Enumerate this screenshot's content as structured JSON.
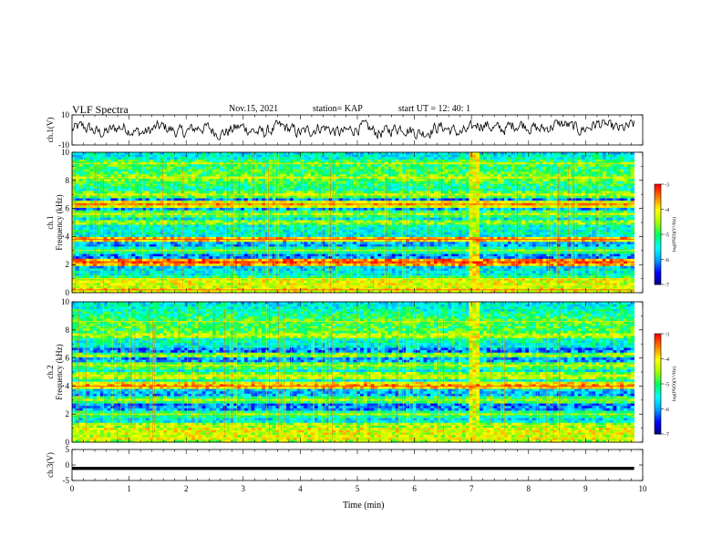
{
  "header": {
    "title": "VLF Spectra",
    "date": "Nov.15, 2021",
    "station": "station= KAP",
    "start_time": "start  UT  =   12: 40: 1"
  },
  "chart_data": [
    {
      "id": "ch1-waveform",
      "type": "line",
      "ylabel": "ch.1(V)",
      "ylim": [
        -10,
        10
      ],
      "yticks": [
        "10",
        "-10"
      ],
      "xlim": [
        0,
        10
      ],
      "description_of_values": "continuous noisy waveform between roughly -6 and +6 V over 0 to 9.85 min"
    },
    {
      "id": "ch1-spectrogram",
      "type": "heatmap",
      "ylabel": "ch.1  Frequency (kHz)",
      "ylim": [
        0,
        10
      ],
      "yticks": [
        "0",
        "2",
        "4",
        "6",
        "8",
        "10"
      ],
      "xlim": [
        0,
        10
      ],
      "colorbar": {
        "label": "log(PSD)(V²/Hz)",
        "range": [
          -7,
          -3
        ],
        "ticks": [
          "-3",
          "-4",
          "-5",
          "-6",
          "-7"
        ]
      },
      "bands": [
        {
          "freq": 0.2,
          "level": -3.9
        },
        {
          "freq": 0.5,
          "level": -4.2
        },
        {
          "freq": 1.0,
          "level": -4.8
        },
        {
          "freq": 2.2,
          "level": -3.3
        },
        {
          "freq": 3.0,
          "level": -4.9
        },
        {
          "freq": 3.8,
          "level": -3.6
        },
        {
          "freq": 5.0,
          "level": -4.5
        },
        {
          "freq": 5.6,
          "level": -4.6
        },
        {
          "freq": 6.3,
          "level": -3.8
        },
        {
          "freq": 7.0,
          "level": -4.4
        },
        {
          "freq": 8.2,
          "level": -4.4
        },
        {
          "freq": 9.2,
          "level": -4.6
        }
      ],
      "broadband_burst_min": 7.0
    },
    {
      "id": "ch2-spectrogram",
      "type": "heatmap",
      "ylabel": "ch.2  Frequency (kHz)",
      "ylim": [
        0,
        10
      ],
      "yticks": [
        "0",
        "2",
        "4",
        "6",
        "8",
        "10"
      ],
      "xlim": [
        0,
        10
      ],
      "colorbar": {
        "label": "log(PSD)(V²/Hz)",
        "range": [
          -7,
          -3
        ],
        "ticks": [
          "-3",
          "-4",
          "-5",
          "-6",
          "-7"
        ]
      },
      "bands": [
        {
          "freq": 0.3,
          "level": -4.0
        },
        {
          "freq": 1.2,
          "level": -4.3
        },
        {
          "freq": 2.0,
          "level": -4.8
        },
        {
          "freq": 3.0,
          "level": -4.6
        },
        {
          "freq": 4.0,
          "level": -3.6
        },
        {
          "freq": 4.7,
          "level": -4.2
        },
        {
          "freq": 5.5,
          "level": -4.5
        },
        {
          "freq": 6.2,
          "level": -4.6
        },
        {
          "freq": 7.6,
          "level": -4.3
        },
        {
          "freq": 8.6,
          "level": -4.6
        }
      ],
      "broadband_burst_min": 7.0
    },
    {
      "id": "ch3-waveform",
      "type": "line",
      "ylabel": "ch.3(V)",
      "ylim": [
        -5,
        5
      ],
      "yticks": [
        "5",
        "0",
        "-5"
      ],
      "xlim": [
        0,
        10
      ],
      "xlabel": "Time  (min)",
      "xticks": [
        "0",
        "1",
        "2",
        "3",
        "4",
        "5",
        "6",
        "7",
        "8",
        "9",
        "10"
      ],
      "description_of_values": "flat trace near -1 V over 0 to 9.85 min"
    }
  ],
  "colors": {
    "waveform": "#000000",
    "colormap": [
      "#00007a",
      "#0000ff",
      "#00a0ff",
      "#00ffff",
      "#00ff60",
      "#a0ff00",
      "#ffff00",
      "#ff8000",
      "#ff0000",
      "#ffffff"
    ]
  }
}
